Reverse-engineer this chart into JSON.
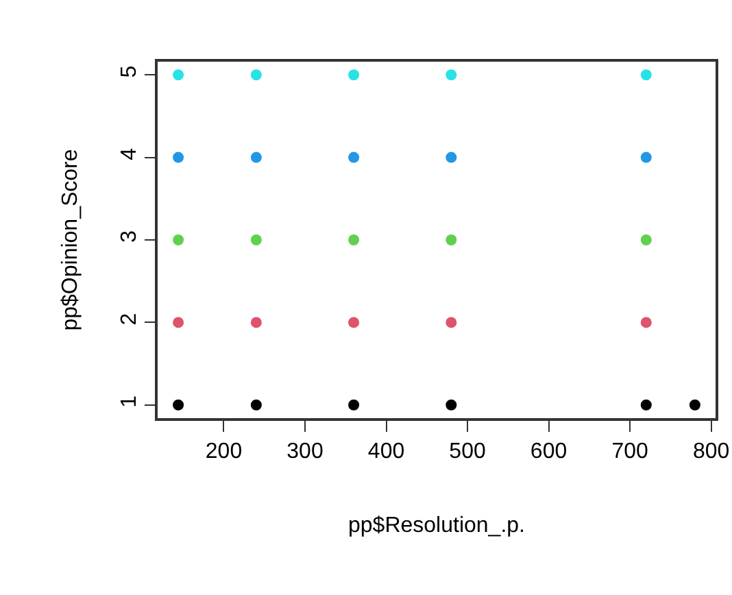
{
  "chart_data": {
    "type": "scatter",
    "xlabel": "pp$Resolution_.p.",
    "ylabel": "pp$Opinion_Score",
    "x": [
      144,
      240,
      360,
      480,
      720,
      144,
      240,
      360,
      480,
      720,
      144,
      240,
      360,
      480,
      720,
      144,
      240,
      360,
      480,
      720,
      144,
      240,
      360,
      480,
      720,
      780
    ],
    "values": [
      5,
      5,
      5,
      5,
      5,
      4,
      4,
      4,
      4,
      4,
      3,
      3,
      3,
      3,
      3,
      2,
      2,
      2,
      2,
      2,
      1,
      1,
      1,
      1,
      1,
      1
    ],
    "colors": [
      "#28e2e5",
      "#28e2e5",
      "#28e2e5",
      "#28e2e5",
      "#28e2e5",
      "#2297e6",
      "#2297e6",
      "#2297e6",
      "#2297e6",
      "#2297e6",
      "#61d04f",
      "#61d04f",
      "#61d04f",
      "#61d04f",
      "#61d04f",
      "#df536b",
      "#df536b",
      "#df536b",
      "#df536b",
      "#df536b",
      "#000000",
      "#000000",
      "#000000",
      "#000000",
      "#000000",
      "#000000"
    ],
    "xlim": [
      118.6,
      805.4
    ],
    "ylim": [
      0.84,
      5.16
    ],
    "xticks": [
      200,
      300,
      400,
      500,
      600,
      700,
      800
    ],
    "yticks": [
      1,
      2,
      3,
      4,
      5
    ],
    "marker": "circle"
  }
}
